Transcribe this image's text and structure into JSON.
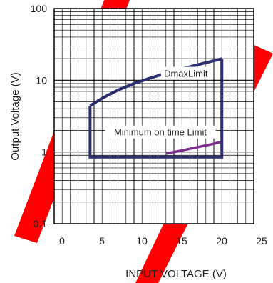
{
  "chart_data": {
    "type": "line",
    "title": "",
    "xlabel": "INPUT VOLTAGE (V)",
    "ylabel": "Output Voltage (V)",
    "x_scale": "linear",
    "y_scale": "log",
    "xlim": [
      0,
      25
    ],
    "ylim": [
      0.1,
      100
    ],
    "x_ticks": [
      "0",
      "5",
      "10",
      "15",
      "20",
      "25"
    ],
    "y_ticks": [
      "0.1",
      "1",
      "10",
      "100"
    ],
    "grid": true,
    "legend": "none",
    "colors": {
      "boundary": "#2b2d6e",
      "min_on_time": "#7b2d8e",
      "grid": "#000000",
      "watermark": "#ff0000"
    },
    "series": [
      {
        "name": "DmaxLimit",
        "x": [
          4.5,
          6,
          8,
          10,
          12,
          14,
          16,
          18,
          20,
          21
        ],
        "y": [
          4.4,
          5.6,
          7.3,
          9.0,
          10.7,
          12.5,
          14.4,
          16.5,
          18.7,
          20
        ]
      },
      {
        "name": "Minimum on time Limit",
        "x": [
          14,
          16,
          18,
          20,
          21
        ],
        "y": [
          0.95,
          1.05,
          1.17,
          1.3,
          1.4
        ]
      },
      {
        "name": "",
        "x": [
          4.5,
          4.5,
          21,
          21
        ],
        "y": [
          4.4,
          0.85,
          0.85,
          20
        ]
      }
    ],
    "annotations": [
      {
        "text": "DmaxLimit",
        "x": 16.5,
        "y": 12.5
      },
      {
        "text": "Minimum on time Limit",
        "x": 13.3,
        "y": 1.9
      }
    ]
  }
}
